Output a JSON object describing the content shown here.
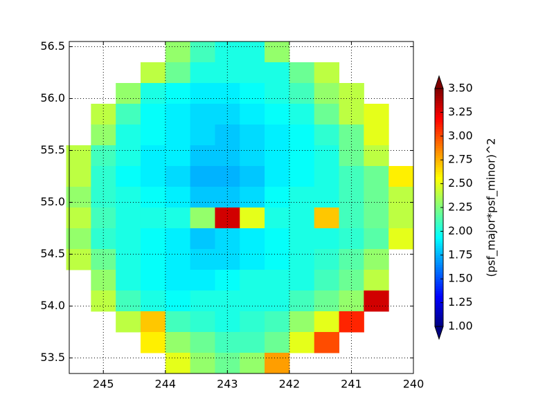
{
  "chart_data": {
    "type": "heatmap",
    "x": [
      245.4,
      245.0,
      244.6,
      244.2,
      243.8,
      243.4,
      243.0,
      242.6,
      242.2,
      241.8,
      241.4,
      241.0,
      240.6,
      240.2
    ],
    "y": [
      56.45,
      56.25,
      56.05,
      55.85,
      55.65,
      55.45,
      55.25,
      55.05,
      54.85,
      54.65,
      54.45,
      54.25,
      54.05,
      53.85,
      53.65,
      53.45
    ],
    "values": [
      [
        null,
        null,
        null,
        null,
        2.3,
        2.1,
        2.0,
        2.0,
        2.3,
        null,
        null,
        null,
        null,
        null
      ],
      [
        null,
        null,
        null,
        2.4,
        2.2,
        2.0,
        2.0,
        2.0,
        2.0,
        2.2,
        2.4,
        null,
        null,
        null
      ],
      [
        null,
        null,
        2.3,
        2.0,
        1.95,
        1.9,
        1.9,
        1.95,
        2.0,
        2.1,
        2.3,
        2.4,
        null,
        null
      ],
      [
        null,
        2.4,
        2.1,
        1.95,
        1.9,
        1.85,
        1.85,
        1.9,
        1.95,
        2.0,
        2.2,
        2.4,
        2.5,
        null
      ],
      [
        null,
        2.3,
        2.0,
        1.95,
        1.9,
        1.85,
        1.8,
        1.85,
        1.9,
        1.95,
        2.05,
        2.2,
        2.5,
        null
      ],
      [
        2.4,
        2.1,
        2.0,
        1.9,
        1.9,
        1.8,
        1.8,
        1.85,
        1.9,
        1.95,
        2.0,
        2.2,
        2.4,
        null
      ],
      [
        2.4,
        2.05,
        1.95,
        1.9,
        1.85,
        1.75,
        1.75,
        1.8,
        1.9,
        1.95,
        2.0,
        2.1,
        2.2,
        2.6
      ],
      [
        2.3,
        2.05,
        2.0,
        1.95,
        1.9,
        1.8,
        1.8,
        1.85,
        1.95,
        2.0,
        2.0,
        2.1,
        2.2,
        2.4
      ],
      [
        2.4,
        2.1,
        2.0,
        2.0,
        2.0,
        2.3,
        3.3,
        2.5,
        2.0,
        2.0,
        2.7,
        2.1,
        2.2,
        2.4
      ],
      [
        2.3,
        2.05,
        2.0,
        1.95,
        1.9,
        1.8,
        1.85,
        1.9,
        1.95,
        2.0,
        2.0,
        2.05,
        2.15,
        2.5
      ],
      [
        2.4,
        2.2,
        2.0,
        1.95,
        1.9,
        1.85,
        1.85,
        1.9,
        1.95,
        2.0,
        2.05,
        2.15,
        2.3,
        null
      ],
      [
        null,
        2.3,
        2.0,
        1.95,
        1.9,
        1.9,
        1.95,
        2.0,
        2.0,
        2.0,
        2.1,
        2.2,
        2.4,
        null
      ],
      [
        null,
        2.4,
        2.1,
        2.0,
        1.95,
        2.0,
        2.0,
        2.0,
        2.0,
        2.1,
        2.2,
        2.3,
        3.3,
        null
      ],
      [
        null,
        null,
        2.4,
        2.7,
        2.1,
        2.05,
        2.0,
        2.05,
        2.1,
        2.3,
        2.5,
        3.1,
        null,
        null
      ],
      [
        null,
        null,
        null,
        2.6,
        2.3,
        2.2,
        2.1,
        2.1,
        2.2,
        2.5,
        3.0,
        null,
        null,
        null
      ],
      [
        null,
        null,
        null,
        null,
        2.5,
        2.3,
        2.2,
        2.3,
        2.8,
        null,
        null,
        null,
        null,
        null
      ]
    ],
    "xlim": [
      245.55,
      240.0
    ],
    "xticks": [
      245,
      244,
      243,
      242,
      241,
      240
    ],
    "ylim": [
      53.35,
      56.55
    ],
    "yticks": [
      53.5,
      {
        "value": 54,
        "label": "54.0"
      },
      54.5,
      {
        "value": 55,
        "label": "55.0"
      },
      55.5,
      {
        "value": 56,
        "label": "56.0"
      },
      56.5
    ],
    "grid": true,
    "colormap": "jet",
    "clim": [
      1,
      3.5
    ],
    "colorbar_label": "(psf_major*psf_minor)^2",
    "colorbar_ticks": [
      {
        "value": 1,
        "label": "1.00"
      },
      {
        "value": 1.25,
        "label": "1.25"
      },
      {
        "value": 1.5,
        "label": "1.50"
      },
      {
        "value": 1.75,
        "label": "1.75"
      },
      {
        "value": 2,
        "label": "2.00"
      },
      {
        "value": 2.25,
        "label": "2.25"
      },
      {
        "value": 2.5,
        "label": "2.50"
      },
      {
        "value": 2.75,
        "label": "2.75"
      },
      {
        "value": 3,
        "label": "3.00"
      },
      {
        "value": 3.25,
        "label": "3.25"
      },
      {
        "value": 3.5,
        "label": "3.50"
      }
    ]
  }
}
